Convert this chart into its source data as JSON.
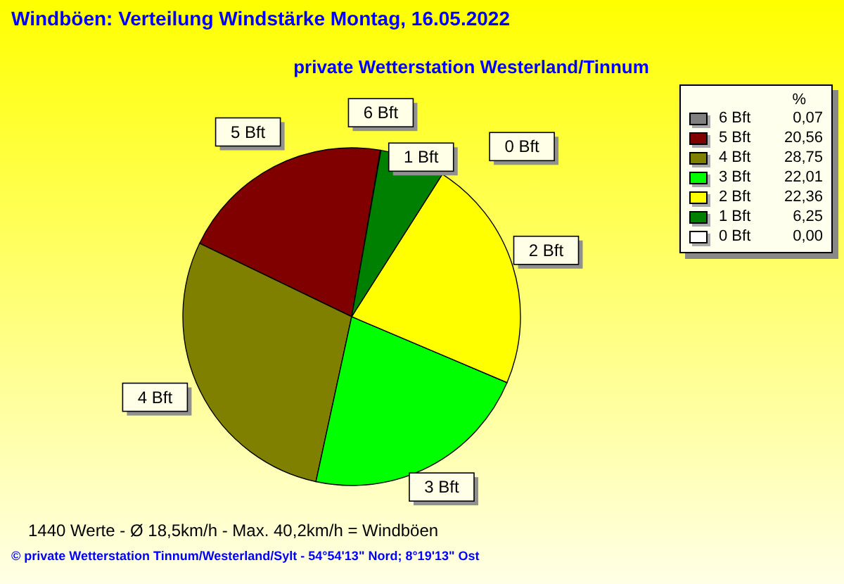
{
  "chart_data": {
    "type": "pie",
    "title": "Windböen: Verteilung Windstärke  Montag, 16.05.2022",
    "subtitle": "private Wetterstation Westerland/Tinnum",
    "categories": [
      "6 Bft",
      "5 Bft",
      "4 Bft",
      "3 Bft",
      "2 Bft",
      "1 Bft",
      "0 Bft"
    ],
    "values": [
      0.07,
      20.56,
      28.75,
      22.01,
      22.36,
      6.25,
      0.0
    ],
    "value_labels": [
      "0,07",
      "20,56",
      "28,75",
      "22,01",
      "22,36",
      "6,25",
      "0,00"
    ],
    "colors": [
      "#808080",
      "#800000",
      "#808000",
      "#00ff00",
      "#ffff00",
      "#008000",
      "#ffffff"
    ],
    "legend": "top right",
    "legend_title": "%",
    "annotations": [
      "1440 Werte   -   Ø 18,5km/h  -  Max. 40,2km/h = Windböen",
      "© private Wetterstation Tinnum/Westerland/Sylt   -   54°54'13\" Nord; 8°19'13\" Ost"
    ]
  }
}
